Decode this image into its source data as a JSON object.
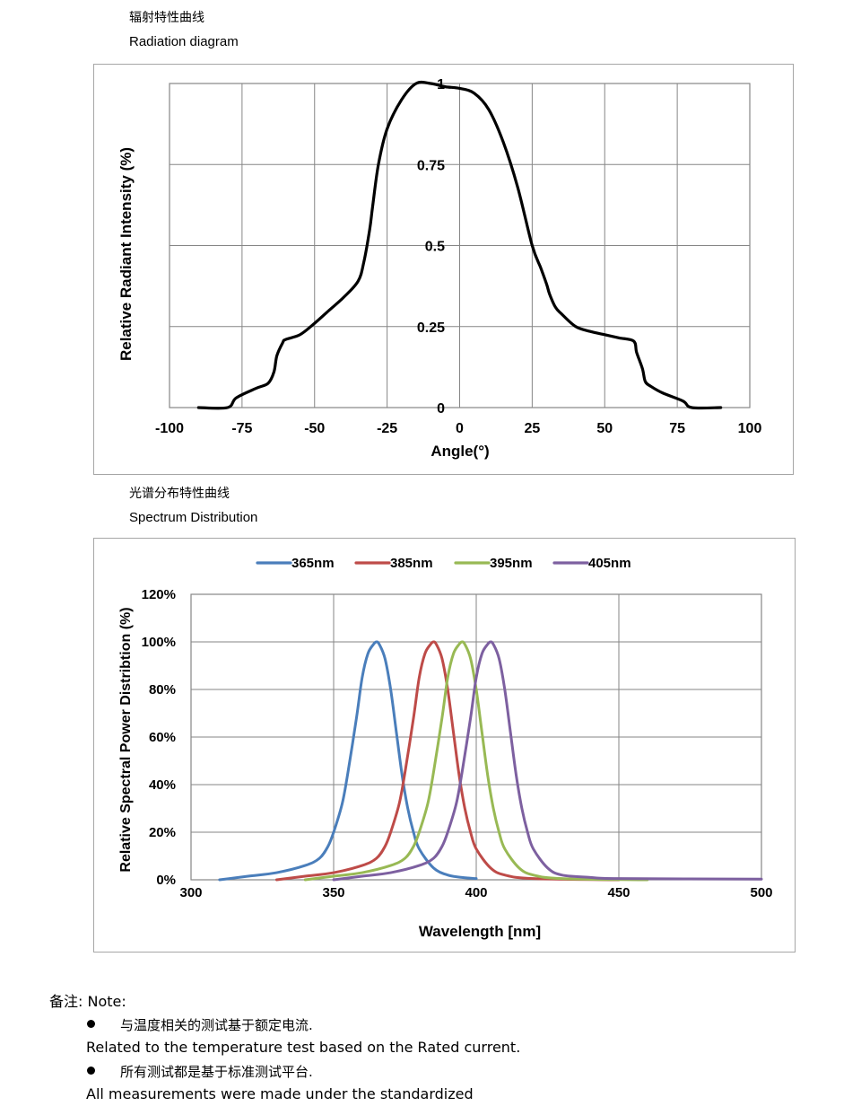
{
  "section1": {
    "title_cn": "辐射特性曲线",
    "title_en": "Radiation diagram"
  },
  "section2": {
    "title_cn": "光谱分布特性曲线",
    "title_en": "Spectrum Distribution"
  },
  "chart_data": [
    {
      "type": "line",
      "title": "Radiation diagram",
      "xlabel": "Angle(°)",
      "ylabel": "Relative Radiant Intensity (%)",
      "xlim": [
        -100,
        100
      ],
      "ylim": [
        0,
        1
      ],
      "xticks": [
        -100,
        -75,
        -50,
        -25,
        0,
        25,
        50,
        75,
        100
      ],
      "xtick_labels": [
        "-100",
        "-75",
        "-50",
        "-25",
        "0",
        "25",
        "50",
        "75",
        "100"
      ],
      "yticks": [
        0,
        0.25,
        0.5,
        0.75,
        1
      ],
      "ytick_labels": [
        "0",
        "0.25",
        "0.5",
        "0.75",
        "1"
      ],
      "grid": true,
      "series": [
        {
          "name": "Relative Radiant Intensity",
          "color": "#000000",
          "x": [
            -90,
            -80,
            -77,
            -70,
            -66,
            -64,
            -63,
            -61,
            -60,
            -55,
            -50,
            -45,
            -40,
            -35,
            -33,
            -31,
            -30,
            -28,
            -25,
            -20,
            -15,
            -10,
            -5,
            0,
            5,
            10,
            15,
            20,
            25,
            28,
            30,
            31,
            33,
            35,
            40,
            45,
            50,
            55,
            60,
            61,
            63,
            64,
            66,
            70,
            77,
            80,
            90
          ],
          "y": [
            0.0,
            0.0,
            0.03,
            0.06,
            0.075,
            0.11,
            0.16,
            0.2,
            0.21,
            0.225,
            0.26,
            0.3,
            0.34,
            0.39,
            0.45,
            0.55,
            0.62,
            0.75,
            0.86,
            0.95,
            1.0,
            1.0,
            0.99,
            0.985,
            0.97,
            0.92,
            0.82,
            0.68,
            0.5,
            0.43,
            0.38,
            0.35,
            0.31,
            0.29,
            0.25,
            0.235,
            0.225,
            0.215,
            0.205,
            0.17,
            0.12,
            0.08,
            0.065,
            0.045,
            0.02,
            0.0,
            0.0
          ]
        }
      ]
    },
    {
      "type": "line",
      "title": "Spectrum Distribution",
      "xlabel": "Wavelength  [nm]",
      "ylabel": "Relative Spectral Power Distribtion (%)",
      "xlim": [
        300,
        500
      ],
      "ylim": [
        0,
        120
      ],
      "xticks": [
        300,
        350,
        400,
        450,
        500
      ],
      "xtick_labels": [
        "300",
        "350",
        "400",
        "450",
        "500"
      ],
      "yticks": [
        0,
        20,
        40,
        60,
        80,
        100,
        120
      ],
      "ytick_labels": [
        "0%",
        "20%",
        "40%",
        "60%",
        "80%",
        "100%",
        "120%"
      ],
      "grid": true,
      "legend_position": "top",
      "series": [
        {
          "name": "365nm",
          "color": "#4a7ebb",
          "peak": 365,
          "range": [
            310,
            400
          ],
          "x": [
            310,
            320,
            330,
            340,
            345,
            348,
            350,
            353,
            355,
            358,
            360,
            362,
            364,
            365,
            366,
            368,
            370,
            372,
            374,
            376,
            378,
            380,
            385,
            390,
            395,
            400
          ],
          "y": [
            0,
            1.5,
            3,
            6,
            9,
            14,
            20,
            32,
            45,
            68,
            85,
            95,
            99,
            100,
            99,
            93,
            80,
            62,
            44,
            30,
            20,
            13,
            5,
            2,
            1,
            0.5
          ]
        },
        {
          "name": "385nm",
          "color": "#be4b48",
          "peak": 385,
          "range": [
            330,
            450
          ],
          "x": [
            330,
            340,
            350,
            360,
            365,
            368,
            370,
            373,
            375,
            378,
            380,
            382,
            384,
            385,
            386,
            388,
            390,
            392,
            394,
            396,
            398,
            400,
            405,
            410,
            420,
            450
          ],
          "y": [
            0,
            1.5,
            3,
            6,
            9,
            14,
            20,
            32,
            45,
            68,
            85,
            95,
            99,
            100,
            99,
            93,
            80,
            62,
            44,
            30,
            20,
            13,
            5,
            2,
            0.5,
            0
          ]
        },
        {
          "name": "395nm",
          "color": "#98b954",
          "peak": 395,
          "range": [
            340,
            460
          ],
          "x": [
            340,
            350,
            360,
            370,
            375,
            378,
            380,
            383,
            385,
            388,
            390,
            392,
            394,
            395,
            396,
            398,
            400,
            402,
            404,
            406,
            408,
            410,
            415,
            420,
            430,
            460
          ],
          "y": [
            0,
            1.5,
            3,
            6,
            9,
            14,
            20,
            32,
            45,
            68,
            85,
            95,
            99,
            100,
            99,
            93,
            80,
            62,
            44,
            30,
            20,
            13,
            5,
            2,
            0.5,
            0
          ]
        },
        {
          "name": "405nm",
          "color": "#7d60a0",
          "peak": 405,
          "range": [
            350,
            500
          ],
          "x": [
            350,
            360,
            370,
            380,
            385,
            388,
            390,
            393,
            395,
            398,
            400,
            402,
            404,
            405,
            406,
            408,
            410,
            412,
            414,
            416,
            418,
            420,
            425,
            430,
            440,
            450,
            500
          ],
          "y": [
            0,
            1.5,
            3,
            6,
            9,
            14,
            20,
            32,
            45,
            68,
            85,
            95,
            99,
            100,
            99,
            93,
            80,
            62,
            44,
            30,
            20,
            13,
            5,
            2,
            1,
            0.5,
            0.3
          ]
        }
      ]
    }
  ],
  "notes": {
    "heading": "备注: Note:",
    "items": [
      {
        "cn": "与温度相关的测试基于额定电流.",
        "en": "Related to the temperature test based on the Rated current."
      },
      {
        "cn": "所有测试都是基于标准测试平台.",
        "en": "All measurements were made under the standardized"
      }
    ]
  }
}
